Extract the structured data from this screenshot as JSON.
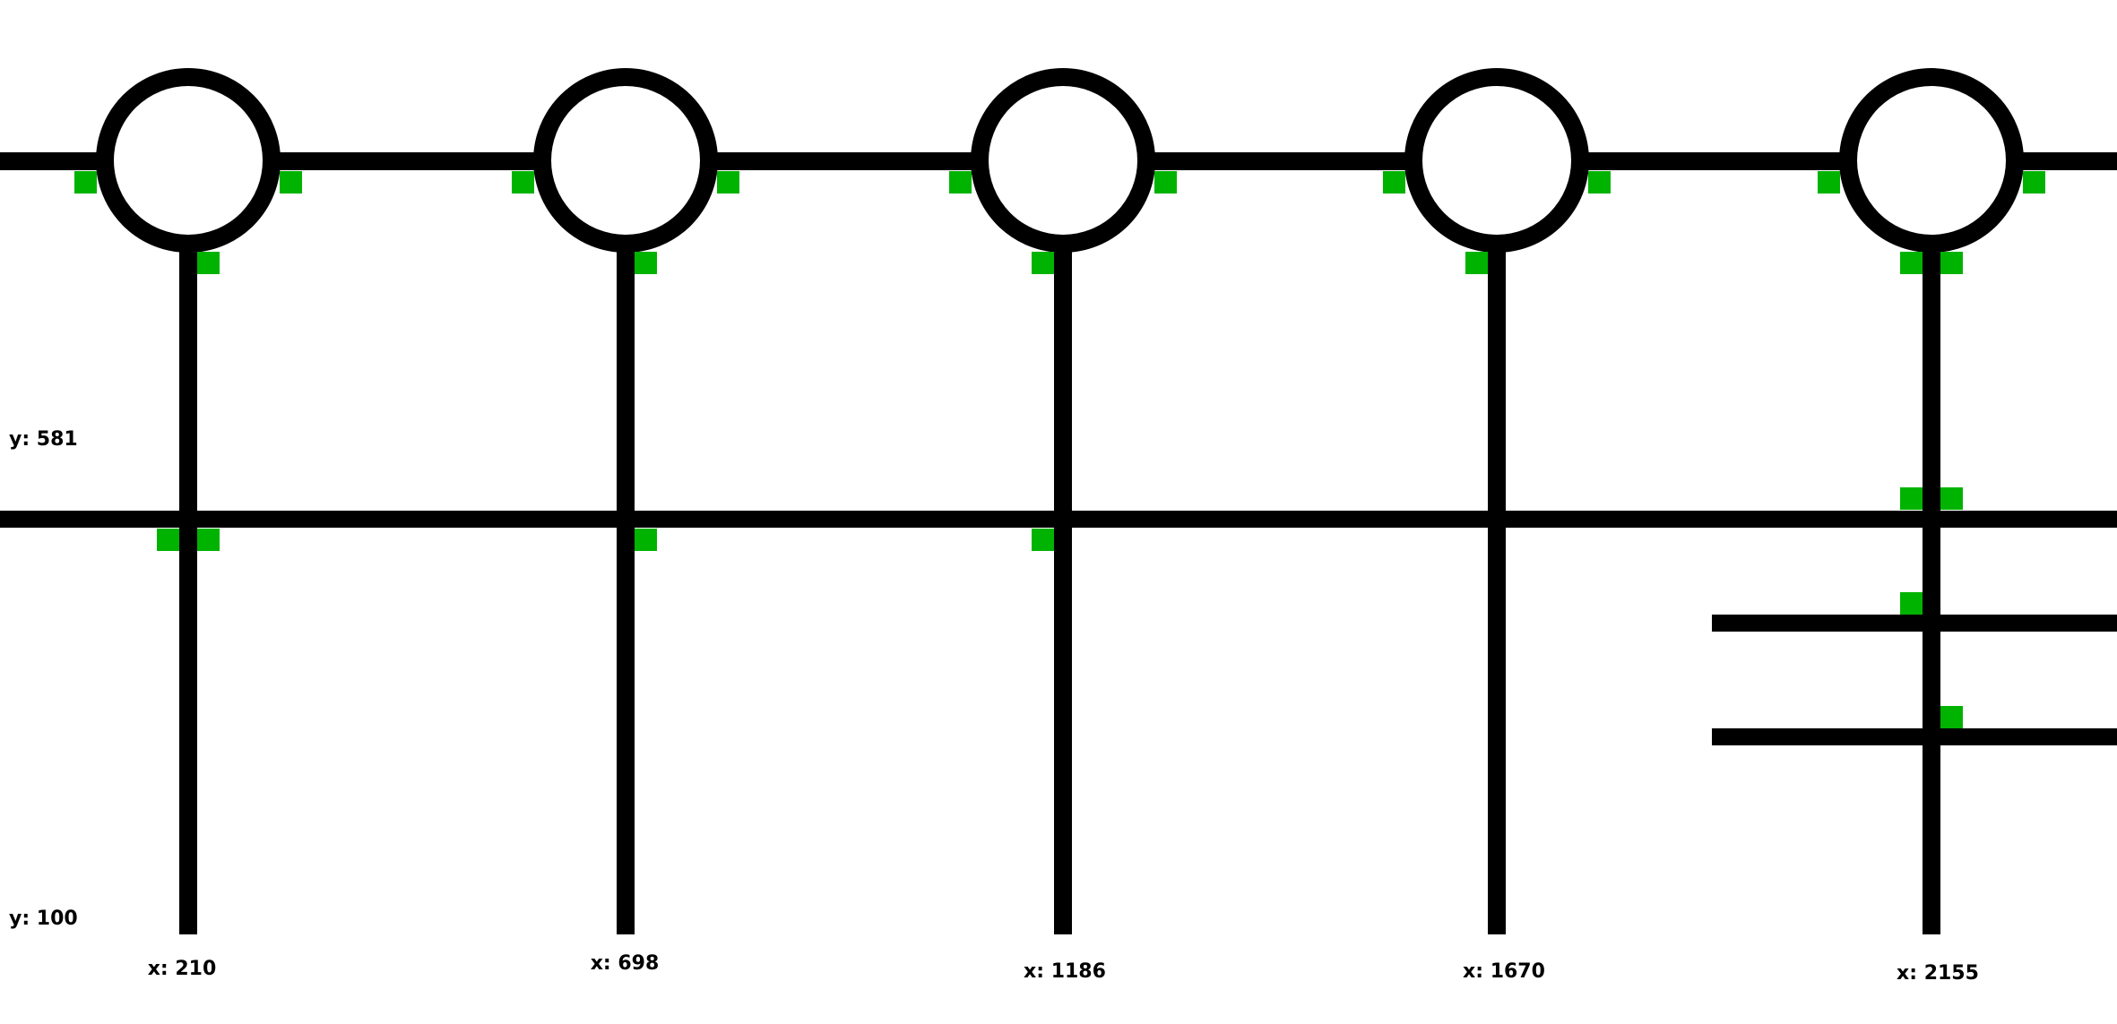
{
  "colors": {
    "line": "#000000",
    "marker": "#00b300",
    "background": "#ffffff"
  },
  "labels": {
    "y_upper": "y: 581",
    "y_lower": "y: 100",
    "x_1": "x: 210",
    "x_2": "x: 698",
    "x_3": "x: 1186",
    "x_4": "x: 1670",
    "x_5": "x: 2155"
  },
  "nodes": [
    {
      "label": "x: 210"
    },
    {
      "label": "x: 698"
    },
    {
      "label": "x: 1186"
    },
    {
      "label": "x: 1670"
    },
    {
      "label": "x: 2155"
    }
  ]
}
